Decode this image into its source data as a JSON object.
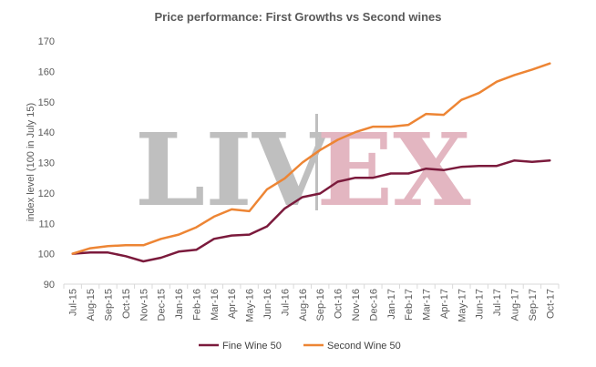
{
  "chart_data": {
    "type": "line",
    "title": "Price performance: First Growths vs Second wines",
    "xlabel": "",
    "ylabel": "index level (100 in July 15)",
    "ylim": [
      90,
      170
    ],
    "yticks": [
      90,
      100,
      110,
      120,
      130,
      140,
      150,
      160,
      170
    ],
    "grid": false,
    "legend": "bottom",
    "watermark": {
      "left": "LIV",
      "right": "EX",
      "left_color": "#bfbfbf",
      "right_color": "#e3b6c1",
      "divider_color": "#bfbfbf"
    },
    "categories": [
      "Jul-15",
      "Aug-15",
      "Sep-15",
      "Oct-15",
      "Nov-15",
      "Dec-15",
      "Jan-16",
      "Feb-16",
      "Mar-16",
      "Apr-16",
      "May-16",
      "Jun-16",
      "Jul-16",
      "Aug-16",
      "Sep-16",
      "Oct-16",
      "Nov-16",
      "Dec-16",
      "Jan-17",
      "Feb-17",
      "Mar-17",
      "Apr-17",
      "May-17",
      "Jun-17",
      "Jul-17",
      "Aug-17",
      "Sep-17",
      "Oct-17"
    ],
    "series": [
      {
        "name": "Fine Wine 50",
        "color": "#7b1a3c",
        "values": [
          100,
          100.4,
          100.4,
          99.2,
          97.5,
          98.7,
          100.7,
          101.3,
          104.9,
          106.0,
          106.3,
          109.0,
          114.9,
          118.6,
          119.8,
          123.7,
          125.0,
          125.0,
          126.4,
          126.4,
          128.0,
          127.5,
          128.6,
          128.9,
          128.9,
          130.7,
          130.2,
          130.7
        ]
      },
      {
        "name": "Second Wine 50",
        "color": "#ed8534",
        "values": [
          100,
          101.8,
          102.5,
          102.8,
          102.8,
          104.9,
          106.3,
          108.7,
          112.2,
          114.6,
          114.0,
          121.2,
          124.8,
          130.0,
          134.1,
          137.5,
          140.0,
          141.8,
          141.8,
          142.4,
          146.0,
          145.7,
          150.6,
          152.9,
          156.6,
          158.8,
          160.6,
          162.6
        ]
      }
    ]
  }
}
